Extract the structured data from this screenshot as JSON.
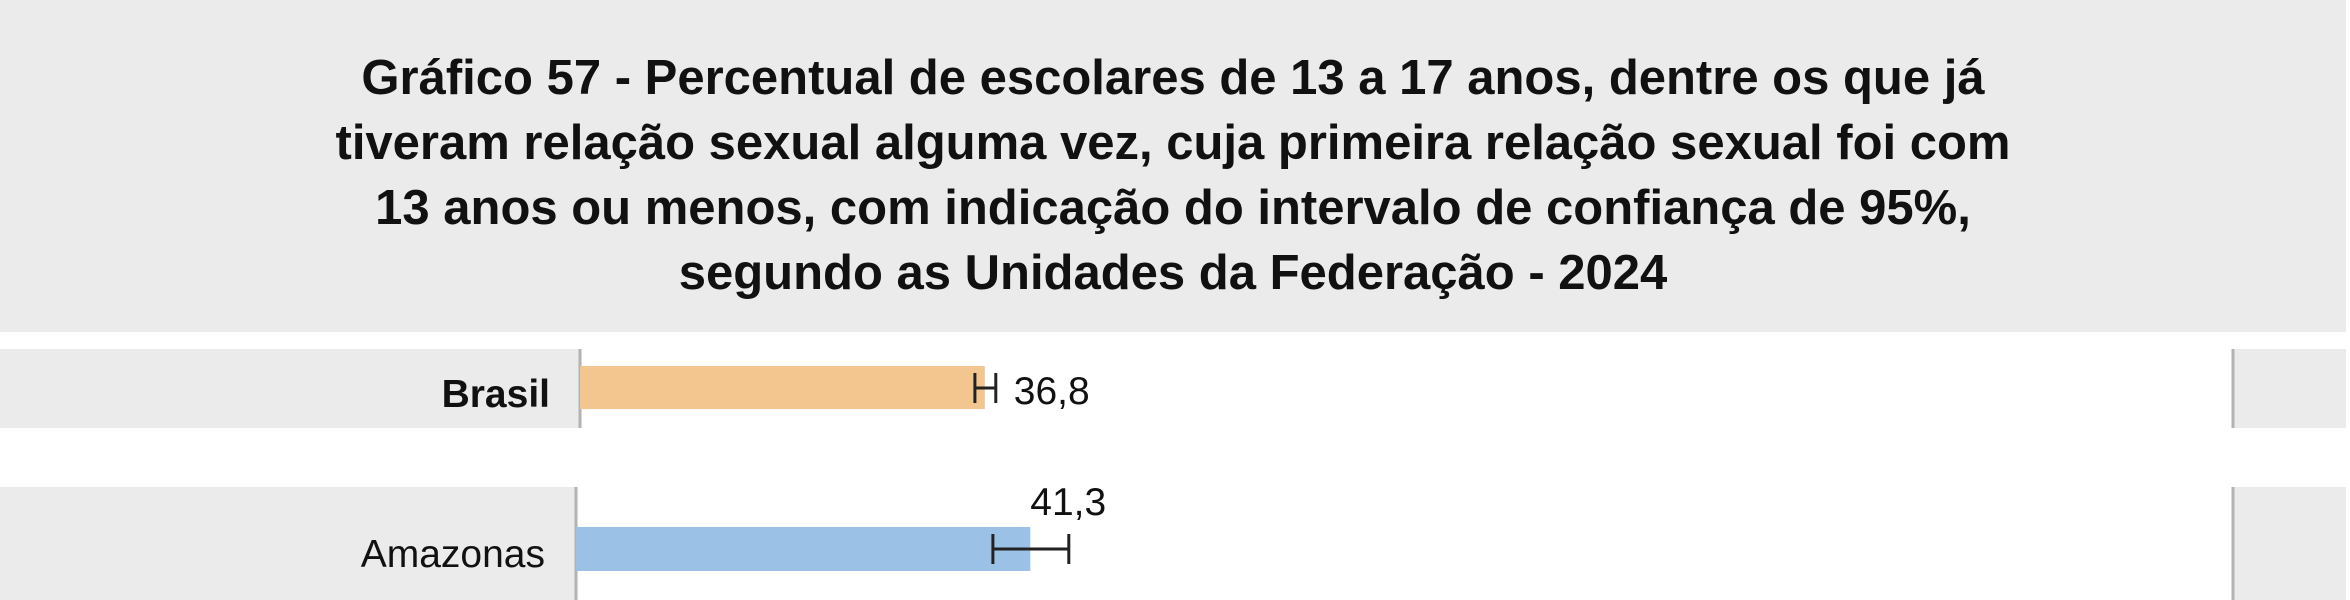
{
  "title": "Gráfico 57 - Percentual de escolares de 13 a 17 anos, dentre os que já\ntiveram relação sexual alguma vez, cuja primeira relação sexual foi com\n13 anos ou menos, com indicação do intervalo de confiança de 95%,\nsegundo as Unidades da Federação - 2024",
  "chart_data": {
    "type": "bar",
    "orientation": "horizontal",
    "title": "Gráfico 57 - Percentual de escolares de 13 a 17 anos, dentre os que já tiveram relação sexual alguma vez, cuja primeira relação sexual foi com 13 anos ou menos, com indicação do intervalo de confiança de 95%, segundo as Unidades da Federação - 2024",
    "categories": [
      "Brasil",
      "Amazonas"
    ],
    "values": [
      36.8,
      41.3
    ],
    "value_labels": [
      "36,8",
      "41,3"
    ],
    "ci95": [
      [
        35.9,
        37.8
      ],
      [
        37.9,
        44.8
      ]
    ],
    "bar_colors": [
      "#f2c68e",
      "#9cc1e7"
    ],
    "xlim": [
      0,
      100
    ],
    "grid": false,
    "legend": "none"
  }
}
